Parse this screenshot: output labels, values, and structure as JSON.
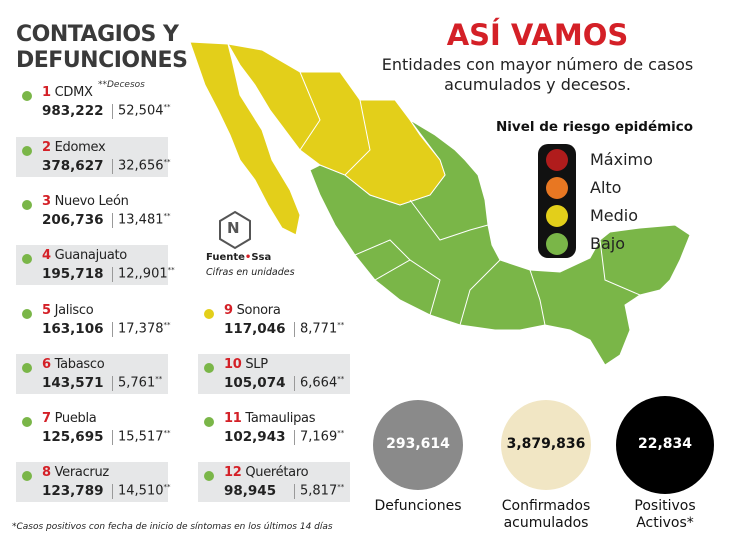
{
  "left_title": "CONTAGIOS Y DEFUNCIONES",
  "title": "ASÍ VAMOS",
  "subtitle": "Entidades con mayor número de casos acumulados y decesos.",
  "deaths_note": "**Decesos",
  "deaths_mark": "**",
  "states": [
    {
      "rank": "1",
      "name": "CDMX",
      "cases": "983,222",
      "deaths": "52,504",
      "color": "#7ab648"
    },
    {
      "rank": "2",
      "name": "Edomex",
      "cases": "378,627",
      "deaths": "32,656",
      "color": "#7ab648"
    },
    {
      "rank": "3",
      "name": "Nuevo León",
      "cases": "206,736",
      "deaths": "13,481",
      "color": "#7ab648"
    },
    {
      "rank": "4",
      "name": "Guanajuato",
      "cases": "195,718",
      "deaths": "12,,901",
      "color": "#7ab648"
    },
    {
      "rank": "5",
      "name": "Jalisco",
      "cases": "163,106",
      "deaths": "17,378",
      "color": "#7ab648"
    },
    {
      "rank": "6",
      "name": "Tabasco",
      "cases": "143,571",
      "deaths": "5,761",
      "color": "#7ab648"
    },
    {
      "rank": "7",
      "name": "Puebla",
      "cases": "125,695",
      "deaths": "15,517",
      "color": "#7ab648"
    },
    {
      "rank": "8",
      "name": "Veracruz",
      "cases": "123,789",
      "deaths": "14,510",
      "color": "#7ab648"
    },
    {
      "rank": "9",
      "name": "Sonora",
      "cases": "117,046",
      "deaths": "8,771",
      "color": "#e3cf1a"
    },
    {
      "rank": "10",
      "name": "SLP",
      "cases": "105,074",
      "deaths": "6,664",
      "color": "#7ab648"
    },
    {
      "rank": "11",
      "name": "Tamaulipas",
      "cases": "102,943",
      "deaths": "7,169",
      "color": "#7ab648"
    },
    {
      "rank": "12",
      "name": "Querétaro",
      "cases": "98,945",
      "deaths": "5,817",
      "color": "#7ab648"
    }
  ],
  "logo": "N",
  "source": {
    "label": "Fuente",
    "name": "Ssa",
    "units": "Cifras en unidades"
  },
  "legend": {
    "title": "Nivel de riesgo epidémico",
    "items": [
      {
        "label": "Máximo",
        "color": "#b01c1c"
      },
      {
        "label": "Alto",
        "color": "#e87722"
      },
      {
        "label": "Medio",
        "color": "#e3cf1a"
      },
      {
        "label": "Bajo",
        "color": "#7ab648"
      }
    ]
  },
  "totals": [
    {
      "value": "293,614",
      "label": "Defunciones",
      "color": "#8a8a8a",
      "text_color": "#ffffff"
    },
    {
      "value": "3,879,836",
      "label": "Confirmados acumulados",
      "color": "#f1e6c4",
      "text_color": "#111111"
    },
    {
      "value": "22,834",
      "label": "Positivos Activos*",
      "color": "#000000",
      "text_color": "#ffffff"
    }
  ],
  "footnote": "*Casos positivos con fecha de inicio de síntomas en los últimos 14 días"
}
